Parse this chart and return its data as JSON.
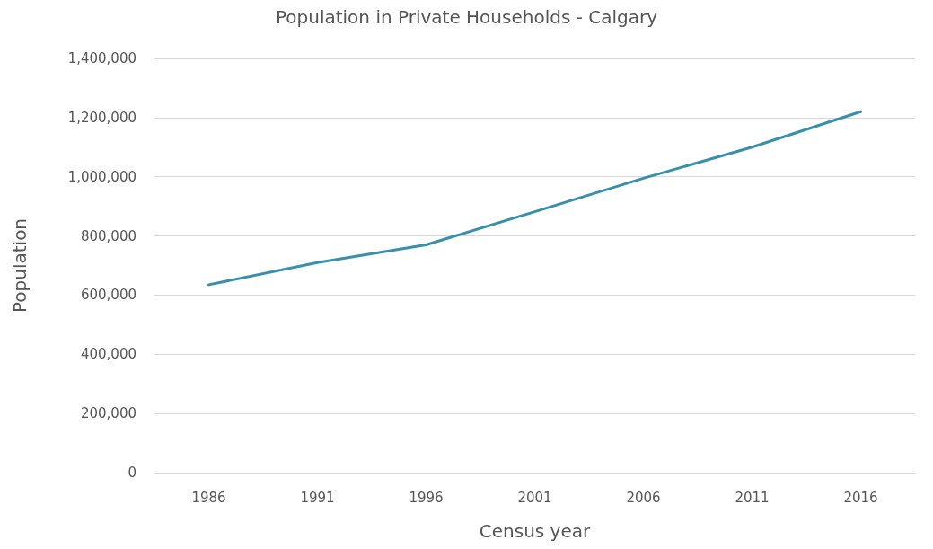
{
  "chart_data": {
    "type": "line",
    "title": "Population in Private Households - Calgary",
    "xlabel": "Census year",
    "ylabel": "Population",
    "categories": [
      "1986",
      "1991",
      "1996",
      "2001",
      "2006",
      "2011",
      "2016"
    ],
    "series": [
      {
        "color": "#3a90aa",
        "values": [
          635000,
          710000,
          770000,
          882000,
          995000,
          1100000,
          1220000
        ]
      }
    ],
    "ylim": [
      0,
      1400000
    ],
    "yticks": [
      0,
      {
        "value": 200000,
        "label": "200,000"
      },
      {
        "value": 400000,
        "label": "400,000"
      },
      {
        "value": 600000,
        "label": "600,000"
      },
      {
        "value": 800000,
        "label": "800,000"
      },
      {
        "value": 1000000,
        "label": "1,000,000"
      },
      {
        "value": 1200000,
        "label": "1,200,000"
      },
      {
        "value": 1400000,
        "label": "1,400,000"
      }
    ],
    "grid": "y",
    "marker": "none",
    "line_style": "solid"
  }
}
